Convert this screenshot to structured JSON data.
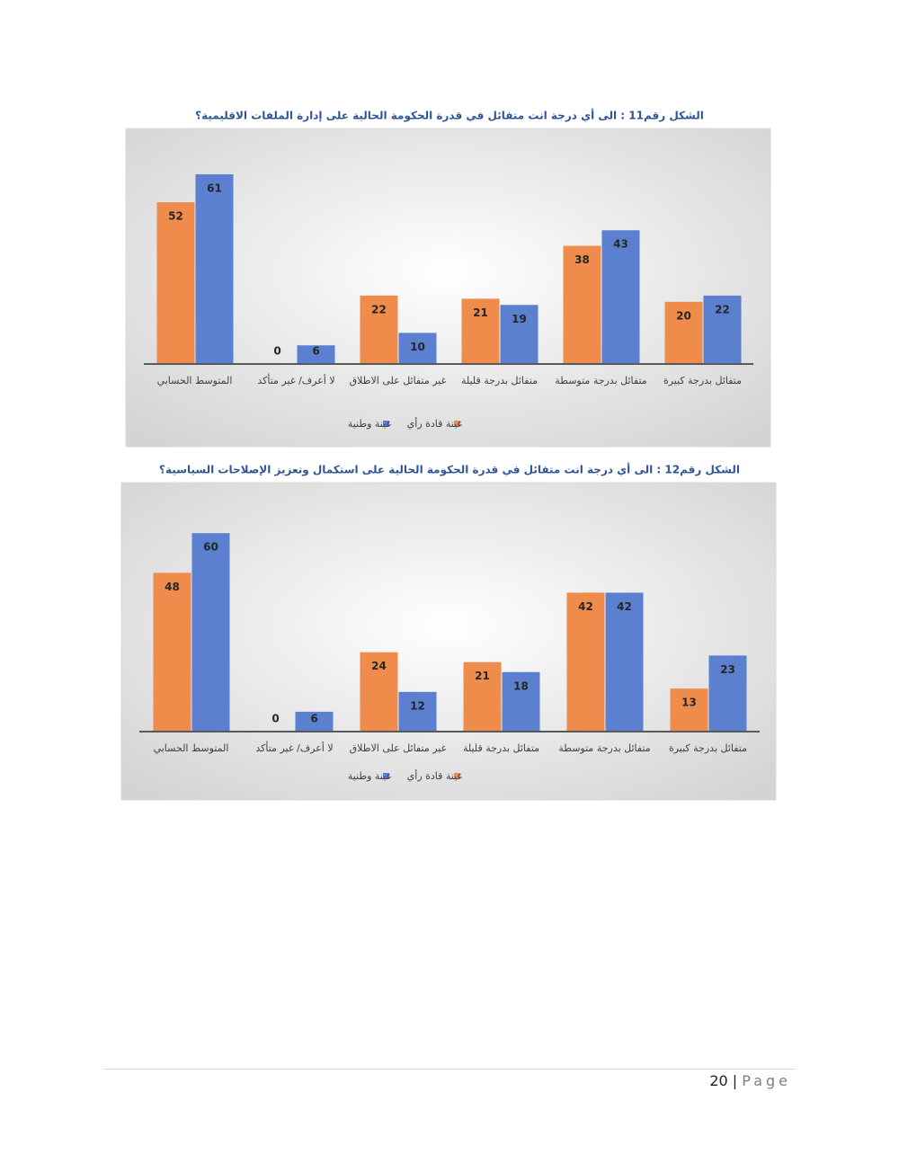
{
  "chart_data": [
    {
      "type": "bar",
      "title": "الشكل رقم11 : الى أي درجة انت متفائل في قدرة الحكومة الحالية على إدارة الملفات الاقليمية؟",
      "categories": [
        "المتوسط الحسابي",
        "لا أعرف/ غير متأكد",
        "غير متفائل على الاطلاق",
        "متفائل بدرجة قليلة",
        "متفائل بدرجة متوسطة",
        "متفائل بدرجة كبيرة"
      ],
      "series": [
        {
          "name": "عينة قادة رأي",
          "color": "#ef8c4c",
          "values": [
            52,
            0,
            22,
            21,
            38,
            20
          ]
        },
        {
          "name": "عينة وطنية",
          "color": "#5b80cf",
          "values": [
            61,
            6,
            10,
            19,
            43,
            22
          ]
        }
      ]
    },
    {
      "type": "bar",
      "title": "الشكل رقم12 : الى أي درجة انت متفائل في قدرة الحكومة الحالية على استكمال وتعزيز الإصلاحات السياسية؟",
      "categories": [
        "المتوسط الحسابي",
        "لا أعرف/ غير متأكد",
        "غير متفائل على الاطلاق",
        "متفائل بدرجة قليلة",
        "متفائل بدرجة متوسطة",
        "متفائل بدرجة كبيرة"
      ],
      "series": [
        {
          "name": "عينة قادة رأي",
          "color": "#ef8c4c",
          "values": [
            48,
            0,
            24,
            21,
            42,
            13
          ]
        },
        {
          "name": "عينة وطنية",
          "color": "#5b80cf",
          "values": [
            60,
            6,
            12,
            18,
            42,
            23
          ]
        }
      ]
    }
  ],
  "footer": {
    "page_number": "20",
    "separator": "|",
    "label": "Page"
  }
}
